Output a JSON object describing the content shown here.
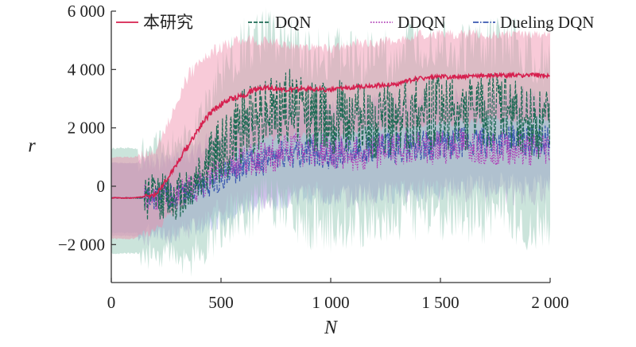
{
  "chart_data": {
    "type": "line",
    "title": "",
    "xlabel": "N",
    "ylabel": "r",
    "xlim": [
      0,
      2000
    ],
    "ylim": [
      -3300,
      6000
    ],
    "x_ticks": [
      0,
      500,
      1000,
      1500,
      2000
    ],
    "x_tick_labels": [
      "0",
      "500",
      "1 000",
      "1 500",
      "2 000"
    ],
    "y_ticks": [
      -2000,
      0,
      2000,
      4000,
      6000
    ],
    "y_tick_labels": [
      "−2 000",
      "0",
      "2 000",
      "4 000",
      "6 000"
    ],
    "grid": false,
    "legend_position": "top",
    "series": [
      {
        "name": "本研究",
        "color": "#d6204f",
        "band_color": "#ef8aa8",
        "dash": "solid",
        "x": [
          0,
          100,
          200,
          250,
          300,
          350,
          400,
          450,
          500,
          550,
          600,
          650,
          700,
          800,
          900,
          1000,
          1100,
          1200,
          1300,
          1400,
          1500,
          1600,
          1700,
          1800,
          1900,
          2000
        ],
        "mean": [
          -400,
          -400,
          -300,
          200,
          800,
          1400,
          2000,
          2500,
          2800,
          3000,
          3100,
          3300,
          3400,
          3300,
          3350,
          3300,
          3400,
          3450,
          3500,
          3700,
          3750,
          3750,
          3800,
          3800,
          3800,
          3800
        ],
        "upper": [
          1000,
          1000,
          1200,
          2000,
          3000,
          3800,
          4200,
          4500,
          4800,
          4900,
          5000,
          5000,
          5000,
          4800,
          4800,
          4700,
          4900,
          4900,
          5000,
          5200,
          5200,
          5200,
          5200,
          5200,
          5200,
          5200
        ],
        "lower": [
          -1800,
          -1800,
          -1500,
          -1100,
          -800,
          -500,
          0,
          300,
          700,
          1000,
          1200,
          1500,
          1700,
          1700,
          1800,
          1800,
          1900,
          2000,
          2000,
          2100,
          2200,
          2200,
          2300,
          2300,
          2300,
          2300
        ]
      },
      {
        "name": "DQN",
        "color": "#1f6b55",
        "band_color": "#8cc4b0",
        "dash": "dashed",
        "x": [
          0,
          100,
          200,
          300,
          350,
          400,
          450,
          500,
          600,
          700,
          800,
          900,
          1000,
          1100,
          1200,
          1300,
          1400,
          1500,
          1600,
          1700,
          1800,
          1900,
          2000
        ],
        "mean": [
          -400,
          -400,
          -400,
          -350,
          -200,
          300,
          800,
          1200,
          2000,
          2600,
          2800,
          2500,
          2400,
          2300,
          2200,
          2300,
          2500,
          2600,
          2400,
          2500,
          2600,
          2200,
          2100
        ],
        "upper": [
          1300,
          1300,
          1300,
          1400,
          1600,
          2300,
          3000,
          3800,
          4800,
          5200,
          5000,
          4600,
          4500,
          4400,
          4400,
          4500,
          4800,
          5000,
          4600,
          4800,
          5000,
          4400,
          4300
        ],
        "lower": [
          -2300,
          -2300,
          -2300,
          -2400,
          -2500,
          -2200,
          -1800,
          -1500,
          -1000,
          -500,
          -800,
          -1200,
          -1400,
          -1200,
          -1200,
          -1100,
          -1000,
          -900,
          -1100,
          -1000,
          -900,
          -1300,
          -1300
        ]
      },
      {
        "name": "DDQN",
        "color": "#b040b8",
        "band_color": "#c9a3dd",
        "dash": "dotted",
        "x": [
          0,
          100,
          200,
          300,
          400,
          500,
          600,
          700,
          800,
          900,
          1000,
          1100,
          1200,
          1300,
          1400,
          1500,
          1600,
          1700,
          1800,
          1900,
          2000
        ],
        "mean": [
          -400,
          -400,
          -400,
          -300,
          0,
          600,
          900,
          1000,
          1200,
          1300,
          1200,
          1100,
          1200,
          1300,
          1400,
          1300,
          1400,
          1300,
          1300,
          1200,
          1300
        ],
        "upper": [
          800,
          800,
          800,
          1000,
          1300,
          1900,
          2300,
          2500,
          2700,
          2800,
          2700,
          2600,
          2700,
          2800,
          2900,
          2800,
          2900,
          2800,
          2800,
          2700,
          2800
        ],
        "lower": [
          -1700,
          -1700,
          -1700,
          -1600,
          -1300,
          -700,
          -500,
          -400,
          -300,
          -200,
          -300,
          -400,
          -300,
          -200,
          -100,
          -200,
          -100,
          -200,
          -200,
          -300,
          -200
        ]
      },
      {
        "name": "Dueling DQN",
        "color": "#3a58b0",
        "band_color": "#9aa8e2",
        "dash": "dashdot",
        "x": [
          0,
          100,
          200,
          300,
          400,
          500,
          600,
          700,
          800,
          900,
          1000,
          1100,
          1200,
          1300,
          1400,
          1500,
          1600,
          1700,
          1800,
          1900,
          2000
        ],
        "mean": [
          -400,
          -400,
          -400,
          -350,
          -100,
          300,
          700,
          900,
          1100,
          1200,
          1100,
          1200,
          1300,
          1300,
          1400,
          1400,
          1500,
          1500,
          1600,
          1500,
          1600
        ],
        "upper": [
          800,
          800,
          800,
          900,
          1200,
          1700,
          2100,
          2400,
          2600,
          2700,
          2600,
          2700,
          2800,
          2800,
          2900,
          2900,
          3000,
          3000,
          3100,
          3000,
          3100
        ],
        "lower": [
          -1600,
          -1600,
          -1600,
          -1600,
          -1400,
          -1100,
          -800,
          -600,
          -400,
          -300,
          -400,
          -300,
          -200,
          -200,
          -100,
          -100,
          0,
          0,
          100,
          0,
          100
        ]
      }
    ]
  }
}
